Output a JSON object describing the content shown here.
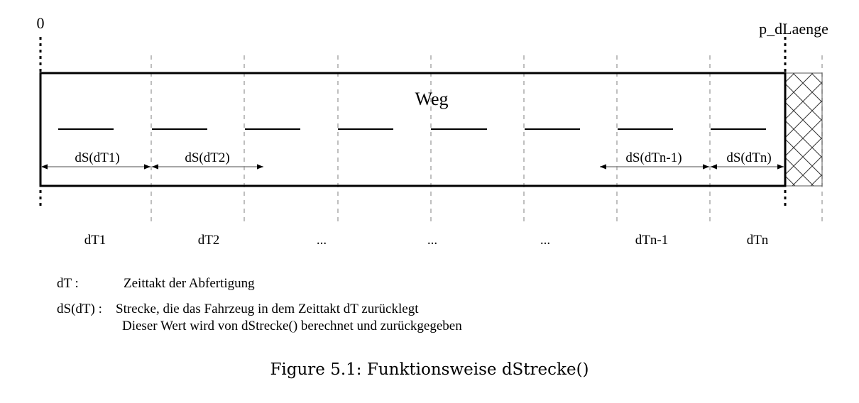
{
  "diagram": {
    "label_start": "0",
    "label_end": "p_dLaenge",
    "label_weg": "Weg",
    "intervals": [
      {
        "dt": "dT1",
        "ds": "dS(dT1)"
      },
      {
        "dt": "dT2",
        "ds": "dS(dT2)"
      },
      {
        "dt": "...",
        "ds": ""
      },
      {
        "dt": "...",
        "ds": ""
      },
      {
        "dt": "...",
        "ds": ""
      },
      {
        "dt": "dTn-1",
        "ds": "dS(dTn-1)"
      },
      {
        "dt": "dTn",
        "ds": "dS(dTn)"
      }
    ]
  },
  "legend": {
    "dt_term": "dT :",
    "dt_def": "Zeittakt der Abfertigung",
    "ds_term": "dS(dT) :",
    "ds_def_line1": "Strecke, die das Fahrzeug in dem Zeittakt dT zurücklegt",
    "ds_def_line2": "Dieser Wert wird von dStrecke() berechnet und zurückgegeben"
  },
  "caption": "Figure 5.1: Funktionsweise dStrecke()"
}
